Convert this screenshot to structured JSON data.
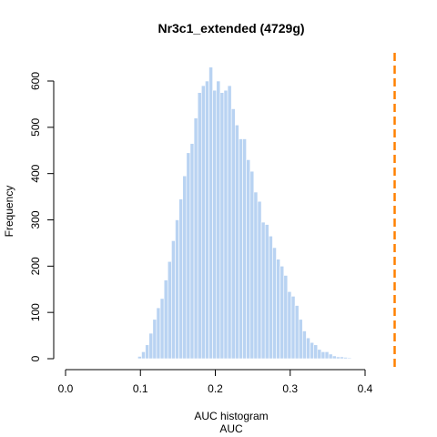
{
  "chart_data": {
    "type": "bar",
    "title": "Nr3c1_extended (4729g)",
    "xlabel_line1": "AUC histogram",
    "xlabel_line2": "AUC",
    "ylabel": "Frequency",
    "xlim": [
      0.0,
      0.44
    ],
    "ylim": [
      0,
      600
    ],
    "x_ticks": [
      "0.0",
      "0.1",
      "0.2",
      "0.3",
      "0.4"
    ],
    "x_tick_values": [
      0.0,
      0.1,
      0.2,
      0.3,
      0.4
    ],
    "y_ticks": [
      "0",
      "100",
      "200",
      "300",
      "400",
      "500",
      "600"
    ],
    "y_tick_values": [
      0,
      100,
      200,
      300,
      400,
      500,
      600
    ],
    "bin_start": 0.0965,
    "bin_width": 0.005,
    "values": [
      5,
      15,
      30,
      55,
      85,
      110,
      130,
      170,
      210,
      255,
      300,
      345,
      395,
      445,
      465,
      520,
      575,
      590,
      600,
      630,
      580,
      600,
      575,
      580,
      590,
      540,
      505,
      475,
      475,
      430,
      405,
      360,
      340,
      295,
      290,
      265,
      240,
      215,
      200,
      180,
      145,
      135,
      115,
      85,
      60,
      45,
      35,
      30,
      20,
      15,
      15,
      10,
      6,
      4,
      4,
      3,
      2
    ],
    "bar_color": "#b9d3f2",
    "threshold": {
      "value": 0.4395,
      "color": "#ff8000"
    }
  }
}
